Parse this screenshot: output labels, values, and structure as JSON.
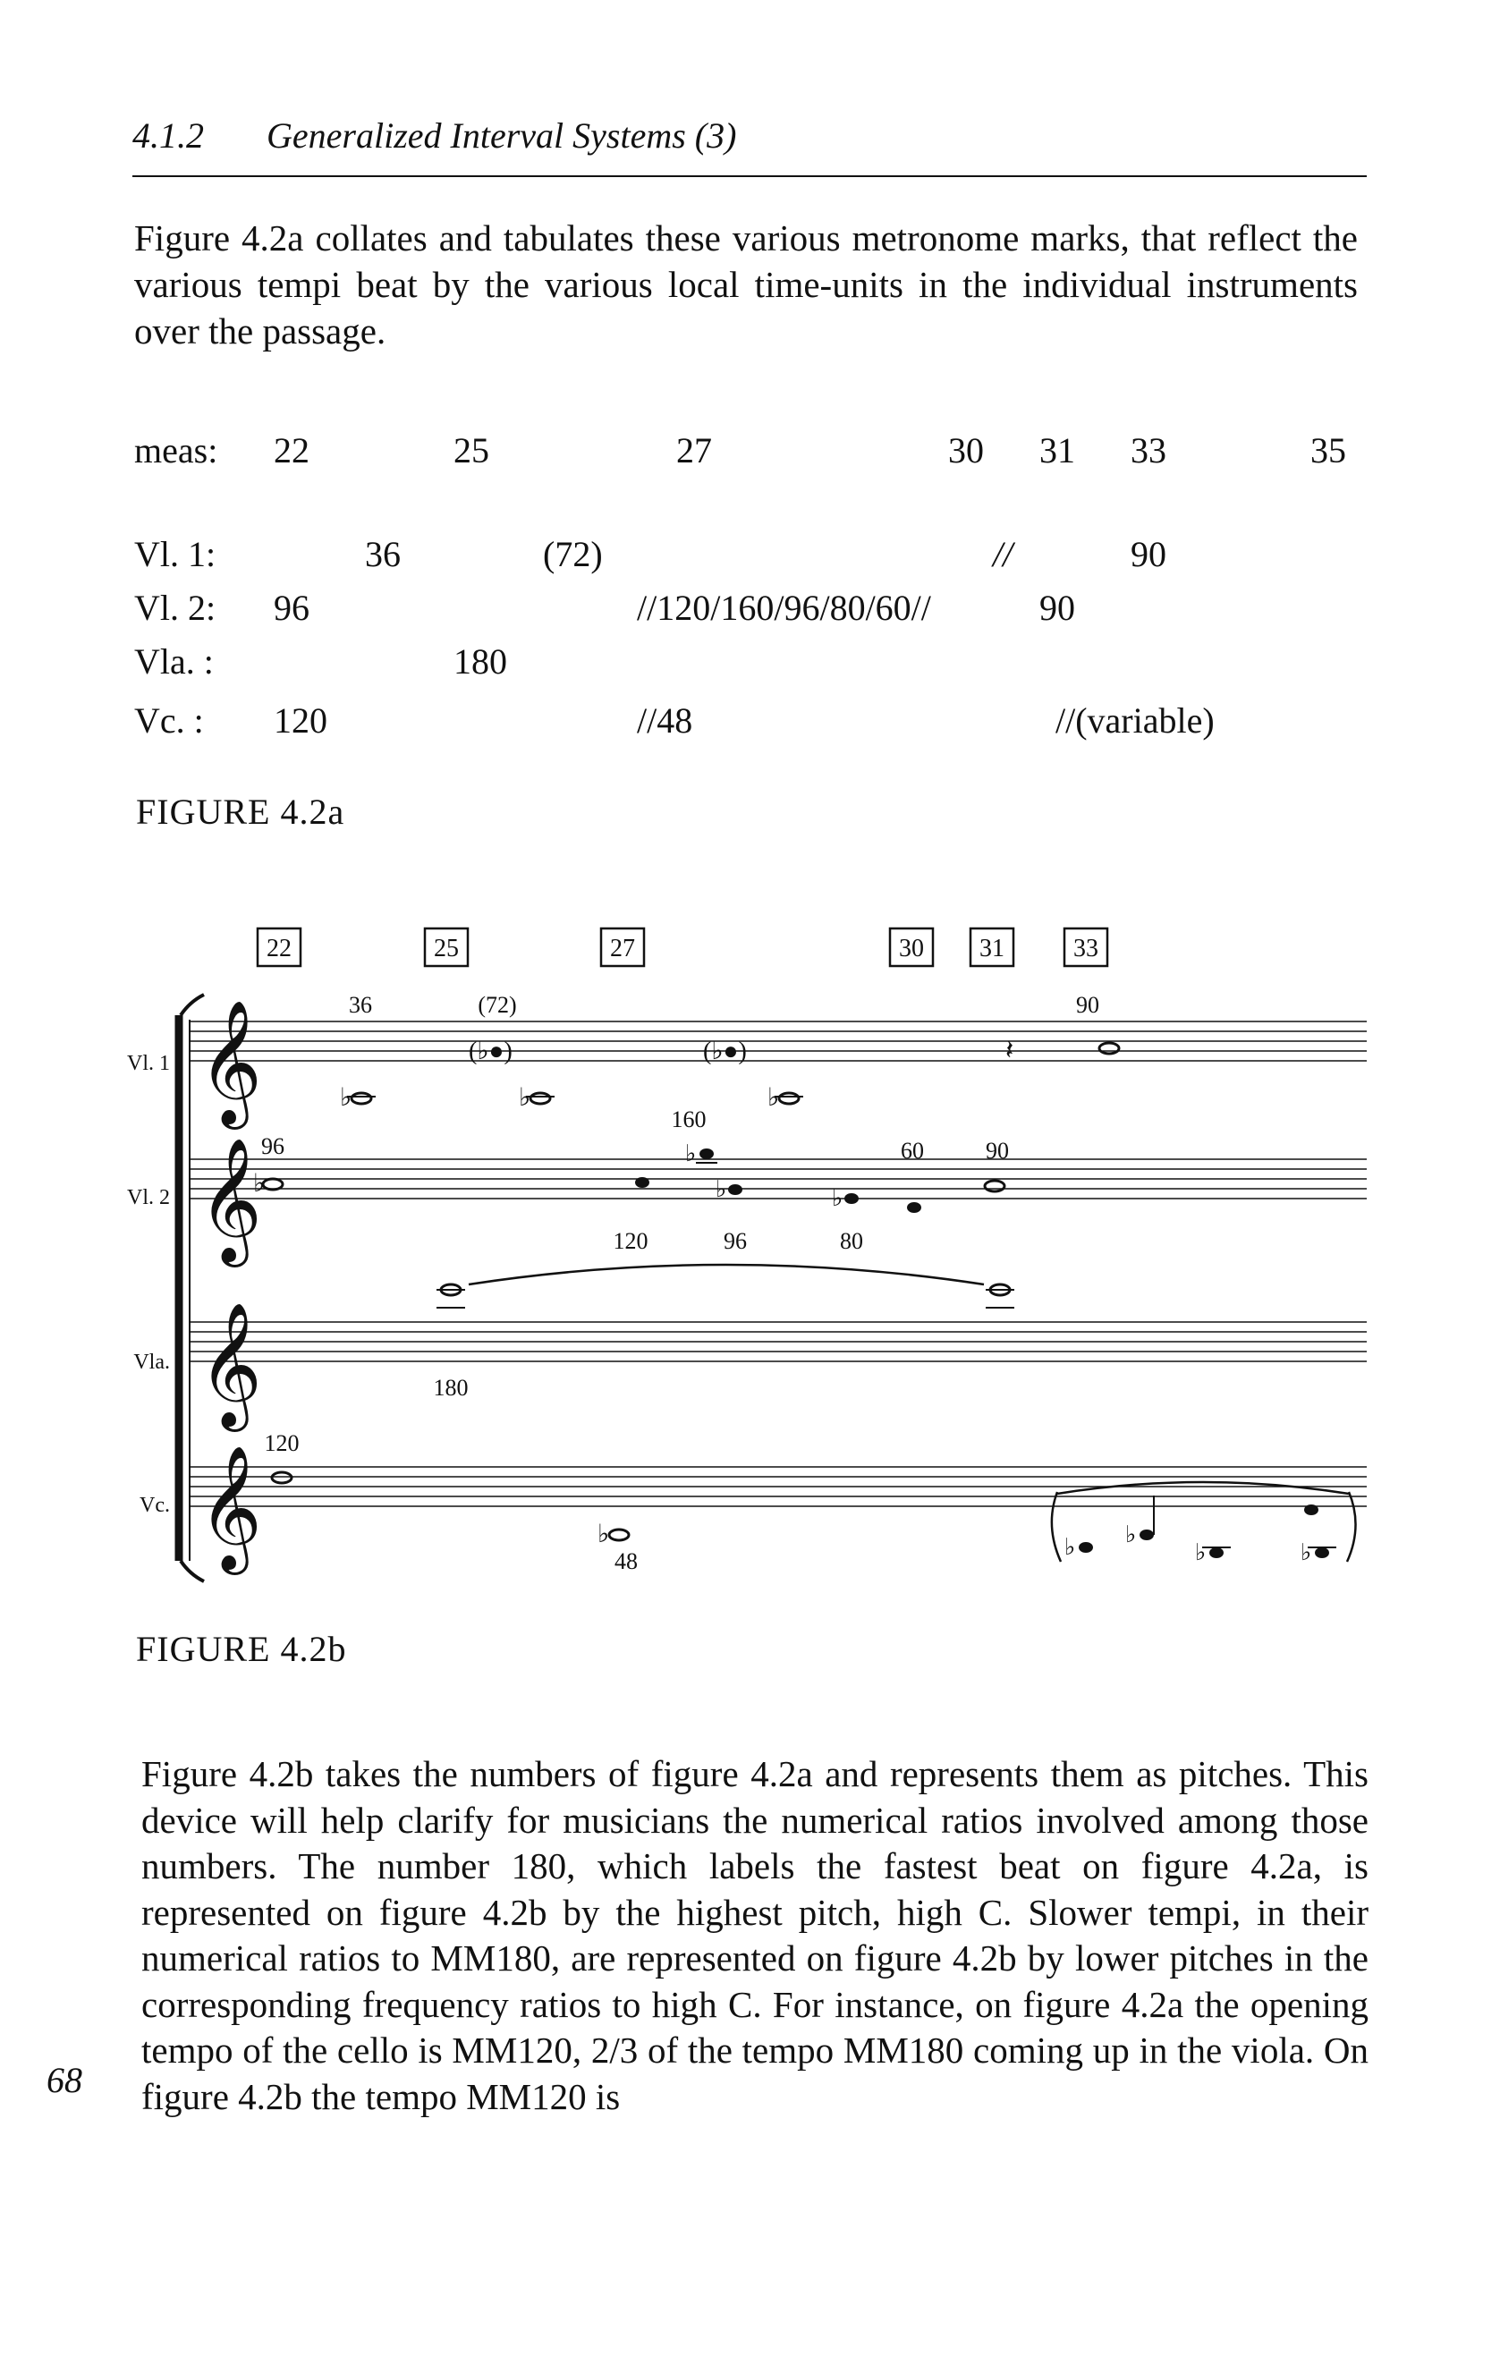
{
  "header": {
    "section": "4.1.2",
    "title": "Generalized Interval Systems (3)"
  },
  "intro": "Figure 4.2a collates and tabulates these various metronome marks, that reflect the various tempi beat by the various local time-units in the individual instruments over the passage.",
  "table": {
    "meas_label": "meas:",
    "measures": [
      "22",
      "25",
      "27",
      "30",
      "31",
      "33",
      "35"
    ],
    "rows": [
      {
        "label": "Vl. 1:",
        "cells": [
          "36",
          "(72)",
          "//",
          "90"
        ]
      },
      {
        "label": "Vl. 2:",
        "cells": [
          "96",
          "//120/160/96/80/60//",
          "90"
        ]
      },
      {
        "label": "Vla. :",
        "cells": [
          "180"
        ]
      },
      {
        "label": "Vc. :",
        "cells": [
          "120",
          "//48",
          "//(variable)"
        ]
      }
    ]
  },
  "figure_a_label": "FIGURE 4.2a",
  "score": {
    "measure_boxes": [
      "22",
      "25",
      "27",
      "30",
      "31",
      "33"
    ],
    "instruments": [
      "Vl. 1",
      "Vl. 2",
      "Vla.",
      "Vc."
    ],
    "vl1_marks": [
      "36",
      "(72)",
      "90"
    ],
    "vl2_marks": [
      "96",
      "160",
      "60",
      "90"
    ],
    "vl2_marks_below": [
      "120",
      "96",
      "80"
    ],
    "vla_mark": "180",
    "vc_marks": [
      "120",
      "48"
    ]
  },
  "figure_b_label": "FIGURE 4.2b",
  "body": "Figure 4.2b takes the numbers of figure 4.2a and represents them as pitches. This device will help clarify for musicians the numerical ratios involved among those numbers. The number 180, which labels the fastest beat on figure 4.2a, is represented on figure 4.2b by the highest pitch, high C. Slower tempi, in their numerical ratios to MM180, are represented on figure 4.2b by lower pitches in the corresponding frequency ratios to high C. For instance, on figure 4.2a the opening tempo of the cello is MM120, 2/3 of the tempo MM180 coming up in the viola. On figure 4.2b the tempo MM120 is",
  "page_number": "68"
}
